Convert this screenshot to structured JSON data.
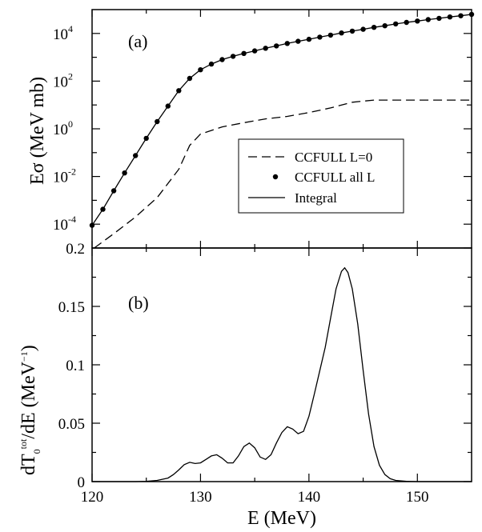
{
  "chart_data": [
    {
      "type": "line",
      "panel_label": "(a)",
      "ylabel": "Eσ (MeV mb)",
      "xlabel": "",
      "y_scale": "log",
      "xlim": [
        120,
        155
      ],
      "ylim": [
        1e-05,
        100000
      ],
      "y_ticks": [
        {
          "base": "10",
          "exp": "4",
          "value": 10000
        },
        {
          "base": "10",
          "exp": "2",
          "value": 100
        },
        {
          "base": "10",
          "exp": "0",
          "value": 1
        },
        {
          "base": "10",
          "exp": "-2",
          "value": 0.01
        },
        {
          "base": "10",
          "exp": "-4",
          "value": 0.0001
        }
      ],
      "legend": {
        "placement": "center-right",
        "entries": [
          "CCFULL L=0",
          "CCFULL all L",
          "Integral"
        ]
      },
      "series": [
        {
          "name": "CCFULL L=0",
          "style": "dashed",
          "x": [
            120.2,
            122,
            124,
            126,
            128,
            129,
            130,
            132,
            134,
            136,
            138,
            140,
            142,
            144,
            146,
            150,
            155
          ],
          "y": [
            1e-05,
            4e-05,
            0.0002,
            0.0013,
            0.02,
            0.2,
            0.6,
            1.2,
            1.8,
            2.6,
            3.3,
            4.8,
            7.5,
            13,
            16,
            16,
            16
          ]
        },
        {
          "name": "CCFULL all L",
          "style": "markers",
          "x": [
            120,
            121,
            122,
            123,
            124,
            125,
            126,
            127,
            128,
            129,
            130,
            131,
            132,
            133,
            134,
            135,
            136,
            137,
            138,
            139,
            140,
            141,
            142,
            143,
            144,
            145,
            146,
            147,
            148,
            149,
            150,
            151,
            152,
            153,
            154,
            155
          ],
          "y": [
            9e-05,
            0.00042,
            0.0025,
            0.014,
            0.075,
            0.4,
            2,
            9,
            40,
            130,
            300,
            520,
            800,
            1100,
            1450,
            1850,
            2400,
            3000,
            3800,
            4700,
            5700,
            7000,
            8500,
            10500,
            12500,
            15000,
            18000,
            21000,
            25000,
            29000,
            33000,
            38000,
            43000,
            49000,
            55000,
            63000
          ]
        },
        {
          "name": "Integral",
          "style": "solid",
          "x": [
            120,
            121,
            122,
            123,
            124,
            125,
            126,
            127,
            128,
            129,
            130,
            131,
            132,
            133,
            134,
            135,
            136,
            137,
            138,
            139,
            140,
            141,
            142,
            143,
            144,
            145,
            146,
            147,
            148,
            149,
            150,
            151,
            152,
            153,
            154,
            155
          ],
          "y": [
            9e-05,
            0.00042,
            0.0025,
            0.014,
            0.075,
            0.4,
            2,
            9,
            40,
            130,
            300,
            520,
            800,
            1100,
            1450,
            1850,
            2400,
            3000,
            3800,
            4700,
            5700,
            7000,
            8500,
            10500,
            12500,
            15000,
            18000,
            21000,
            25000,
            29000,
            33000,
            38000,
            43000,
            49000,
            55000,
            63000
          ]
        }
      ]
    },
    {
      "type": "line",
      "panel_label": "(b)",
      "ylabel_base": "dT",
      "ylabel_sub": "0",
      "ylabel_sup": "tot",
      "ylabel_rest": "/dE  (MeV",
      "ylabel_unit_sup": "−1",
      "ylabel_close": ")",
      "xlabel": "E  (MeV)",
      "xlim": [
        120,
        155
      ],
      "ylim": [
        0,
        0.2
      ],
      "y_tick_labels": [
        "0",
        "0.05",
        "0.1",
        "0.15",
        "0.2"
      ],
      "y_tick_values": [
        0,
        0.05,
        0.1,
        0.15,
        0.2
      ],
      "x_tick_labels": [
        "120",
        "130",
        "140",
        "150"
      ],
      "x_tick_values": [
        120,
        130,
        140,
        150
      ],
      "series": [
        {
          "style": "solid",
          "x": [
            120,
            124,
            125,
            126,
            127,
            127.5,
            128,
            128.5,
            129,
            129.5,
            130,
            130.5,
            131,
            131.5,
            132,
            132.5,
            133,
            133.5,
            134,
            134.5,
            135,
            135.5,
            136,
            136.5,
            137,
            137.5,
            138,
            138.5,
            139,
            139.5,
            140,
            140.5,
            141,
            141.5,
            142,
            142.5,
            143,
            143.3,
            143.6,
            144,
            144.5,
            145,
            145.5,
            146,
            146.5,
            147,
            147.5,
            148,
            149,
            150,
            152,
            155
          ],
          "y": [
            0,
            0,
            0.0003,
            0.001,
            0.003,
            0.006,
            0.01,
            0.0145,
            0.0165,
            0.0155,
            0.016,
            0.019,
            0.022,
            0.023,
            0.02,
            0.016,
            0.016,
            0.022,
            0.03,
            0.033,
            0.029,
            0.021,
            0.019,
            0.023,
            0.033,
            0.042,
            0.047,
            0.045,
            0.041,
            0.043,
            0.056,
            0.075,
            0.095,
            0.115,
            0.14,
            0.165,
            0.18,
            0.183,
            0.179,
            0.165,
            0.135,
            0.095,
            0.058,
            0.03,
            0.014,
            0.006,
            0.0025,
            0.001,
            0.0002,
            0,
            0,
            0
          ]
        }
      ]
    }
  ]
}
